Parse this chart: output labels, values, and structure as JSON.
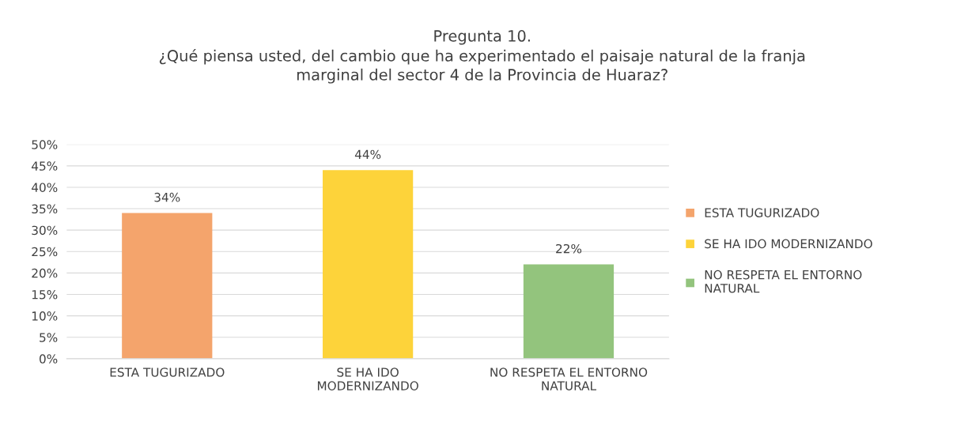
{
  "chart_data": {
    "type": "bar",
    "title": "Pregunta 10.\n¿Qué piensa usted, del cambio que ha experimentado el paisaje natural de la franja\nmarginal del sector 4 de la Provincia de Huaraz?",
    "categories": [
      "ESTA TUGURIZADO",
      "SE HA IDO\nMODERNIZANDO",
      "NO RESPETA EL ENTORNO\nNATURAL"
    ],
    "series": [
      {
        "name": "ESTA TUGURIZADO",
        "color": "#f4a46c",
        "values": [
          34,
          null,
          null
        ],
        "value_labels": [
          "34%",
          null,
          null
        ]
      },
      {
        "name": "SE HA IDO MODERNIZANDO",
        "color": "#fdd33a",
        "values": [
          null,
          44,
          null
        ],
        "value_labels": [
          null,
          "44%",
          null
        ]
      },
      {
        "name": "NO RESPETA EL ENTORNO\nNATURAL",
        "color": "#93c47d",
        "values": [
          null,
          null,
          22
        ],
        "value_labels": [
          null,
          null,
          "22%"
        ]
      }
    ],
    "ylim": [
      0,
      50
    ],
    "yticks": [
      {
        "value": 0,
        "label": "0%"
      },
      {
        "value": 5,
        "label": "5%"
      },
      {
        "value": 10,
        "label": "10%"
      },
      {
        "value": 15,
        "label": "15%"
      },
      {
        "value": 20,
        "label": "20%"
      },
      {
        "value": 25,
        "label": "25%"
      },
      {
        "value": 30,
        "label": "30%"
      },
      {
        "value": 35,
        "label": "35%"
      },
      {
        "value": 40,
        "label": "40%"
      },
      {
        "value": 45,
        "label": "45%"
      },
      {
        "value": 50,
        "label": "50%"
      }
    ],
    "grid": "y",
    "legend": "right"
  }
}
